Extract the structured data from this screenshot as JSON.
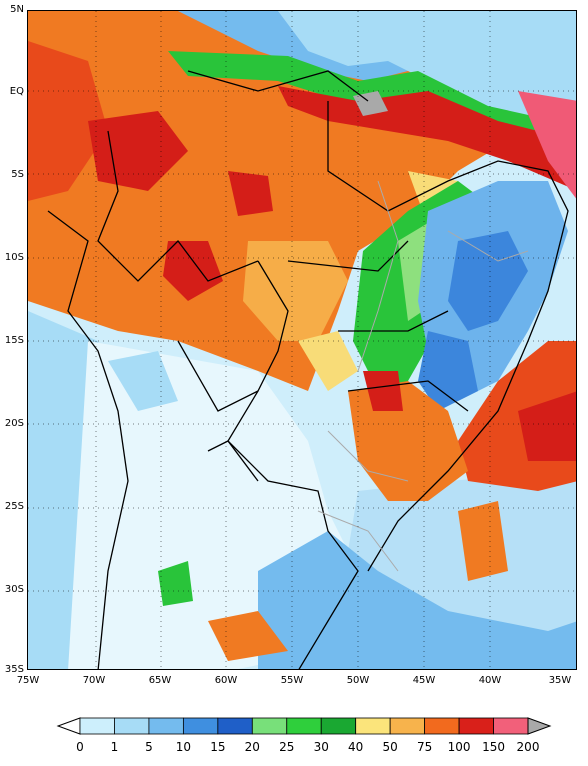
{
  "map": {
    "lat_ticks": [
      "5N",
      "EQ",
      "5S",
      "10S",
      "15S",
      "20S",
      "25S",
      "30S",
      "35S"
    ],
    "lon_ticks": [
      "75W",
      "70W",
      "65W",
      "60W",
      "55W",
      "50W",
      "45W",
      "40W",
      "35W"
    ]
  },
  "legend": {
    "labels": [
      "0",
      "1",
      "5",
      "10",
      "15",
      "20",
      "25",
      "30",
      "40",
      "50",
      "75",
      "100",
      "150",
      "200"
    ],
    "colors": [
      "#ffffff",
      "#cdeffc",
      "#a7dcf6",
      "#74bbee",
      "#3f8fe0",
      "#1f5fc8",
      "#78e07a",
      "#2fcf3c",
      "#1aa832",
      "#fbe47b",
      "#f7b34c",
      "#f26a1e",
      "#d9201a",
      "#f2607a",
      "#a9a9a9"
    ]
  },
  "colors": {
    "very_light": "#e7f7fd",
    "light_blue": "#b6e0f7",
    "mid_blue": "#6db3ec",
    "blue": "#3c86dc",
    "green": "#29c43a",
    "light_green": "#8ee07e",
    "yellow": "#f8dc78",
    "orange_light": "#f6ad48",
    "orange": "#f07a22",
    "red_orange": "#e84a1b",
    "red": "#d41e18",
    "pink": "#f05a76",
    "gray": "#a9a9a9"
  }
}
